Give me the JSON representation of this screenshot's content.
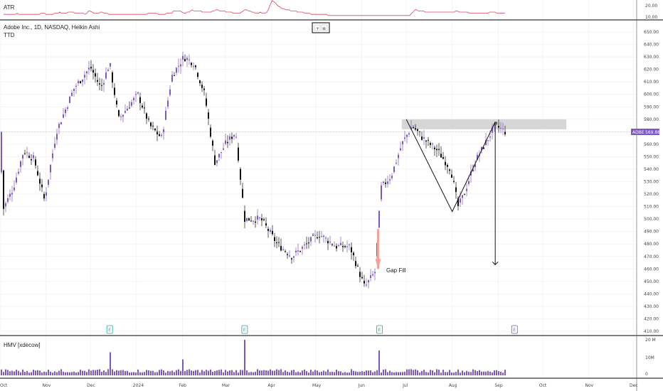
{
  "header": {
    "title": "Adobe Inc., 1D, NASDAQ, Heikin Ashi",
    "indicator": "TTD",
    "mini_buttons": [
      "+",
      "⊕"
    ]
  },
  "atr_panel": {
    "label": "ATR",
    "ticks": [
      "20.00",
      "10.00"
    ],
    "values": [
      13,
      13,
      13,
      13,
      13,
      13,
      13,
      13,
      14,
      13,
      13,
      13,
      13,
      13,
      13,
      13,
      13,
      13,
      13,
      13,
      13,
      13,
      14,
      14,
      14,
      13,
      13,
      13,
      13,
      13,
      14,
      14,
      14,
      15,
      14,
      14,
      14,
      14,
      15,
      15,
      15,
      15,
      14,
      14,
      14,
      14,
      14,
      14,
      13,
      14,
      16,
      16,
      15,
      14,
      14,
      14,
      14,
      15,
      15,
      14,
      14,
      14,
      13,
      13,
      13,
      13,
      13,
      13,
      13,
      13,
      13,
      13,
      13,
      13,
      13,
      13,
      13,
      13,
      13,
      13,
      13,
      13,
      13,
      13,
      13,
      14,
      14,
      14,
      14,
      14,
      14,
      13,
      13,
      13,
      13,
      13,
      14,
      14,
      14,
      14,
      16,
      16,
      16,
      16,
      16,
      15,
      14,
      14,
      15,
      15,
      16,
      17,
      16,
      16,
      16,
      16,
      16,
      15,
      15,
      15,
      15,
      15,
      15,
      16,
      16,
      17,
      17,
      16,
      16,
      16,
      16,
      15,
      15,
      15,
      15,
      14,
      14,
      14,
      14,
      14,
      15,
      16,
      17,
      17,
      16,
      16,
      15,
      15,
      14,
      14,
      14,
      15,
      14,
      14,
      14,
      15,
      18,
      22,
      25,
      24,
      23,
      21,
      20,
      19,
      18,
      18,
      17,
      17,
      17,
      16,
      16,
      16,
      16,
      15,
      15,
      15,
      15,
      14,
      14,
      14,
      14,
      13,
      13,
      13,
      13,
      13,
      13,
      13,
      13,
      13,
      13,
      12,
      12,
      12,
      12,
      12,
      12,
      12,
      12,
      12,
      12,
      12,
      12,
      12,
      12,
      12,
      12,
      12,
      12,
      12,
      12,
      12,
      12,
      12,
      12,
      12,
      12,
      12,
      12,
      12,
      12,
      12,
      12,
      12,
      12,
      12,
      12,
      12,
      12,
      12,
      12,
      12,
      12,
      12,
      12,
      12,
      12,
      12,
      12,
      12,
      14,
      15,
      17,
      17,
      16,
      16,
      16,
      16,
      15,
      15,
      15,
      15,
      15,
      15,
      15,
      15,
      15,
      15,
      15,
      15,
      15,
      15,
      15,
      15,
      15,
      15,
      16,
      16,
      15,
      15,
      15,
      15,
      15,
      15,
      14,
      14,
      14,
      14,
      14,
      14,
      14,
      14,
      14,
      14,
      14,
      14,
      15,
      15,
      15,
      15,
      14,
      14,
      14,
      14,
      14,
      14
    ]
  },
  "price_axis": {
    "ticks": [
      "650.00",
      "640.00",
      "630.00",
      "620.00",
      "610.00",
      "600.00",
      "590.00",
      "580.00",
      "570.00",
      "560.00",
      "550.00",
      "540.00",
      "530.00",
      "520.00",
      "510.00",
      "500.00",
      "490.00",
      "480.00",
      "470.00",
      "460.00",
      "450.00",
      "440.00",
      "430.00",
      "420.00",
      "410.00"
    ],
    "current_symbol": "ADBE",
    "current_price": "569.88"
  },
  "time_axis": {
    "labels": [
      "Oct",
      "Nov",
      "Dec",
      "2024",
      "Feb",
      "Mar",
      "Apr",
      "May",
      "Jun",
      "Jul",
      "Aug",
      "Sep",
      "Oct",
      "Nov",
      "Dec"
    ]
  },
  "annotations": {
    "gap_fill": "Gap Fill",
    "earnings_marker": "E"
  },
  "volume_panel": {
    "label": "HMV [xdecow]",
    "ticks": [
      "20 M",
      "10M",
      "0"
    ]
  },
  "colors": {
    "bull": "#7e57c2",
    "bear": "#111111",
    "atr_line": "#e0455f",
    "volume_bar": "#7e57c2",
    "earnings": "#26a69a",
    "resistance_zone": "#cfcfcf",
    "gap_arrow": "#f4a39a"
  },
  "chart_data": {
    "type": "candlestick",
    "title": "Adobe Inc., 1D, NASDAQ, Heikin Ashi",
    "ylim": [
      405,
      655
    ],
    "x_range": [
      "Oct 2023",
      "Dec 2024"
    ],
    "price_path": [
      {
        "x": "2023-10-02",
        "y": 505
      },
      {
        "x": "2023-10-10",
        "y": 525
      },
      {
        "x": "2023-10-17",
        "y": 555
      },
      {
        "x": "2023-10-24",
        "y": 548
      },
      {
        "x": "2023-10-31",
        "y": 515
      },
      {
        "x": "2023-11-08",
        "y": 570
      },
      {
        "x": "2023-11-20",
        "y": 605
      },
      {
        "x": "2023-12-01",
        "y": 622
      },
      {
        "x": "2023-12-08",
        "y": 605
      },
      {
        "x": "2023-12-14",
        "y": 625
      },
      {
        "x": "2023-12-20",
        "y": 580
      },
      {
        "x": "2024-01-02",
        "y": 600
      },
      {
        "x": "2024-01-10",
        "y": 575
      },
      {
        "x": "2024-01-18",
        "y": 565
      },
      {
        "x": "2024-01-25",
        "y": 615
      },
      {
        "x": "2024-02-02",
        "y": 630
      },
      {
        "x": "2024-02-09",
        "y": 625
      },
      {
        "x": "2024-02-16",
        "y": 600
      },
      {
        "x": "2024-02-23",
        "y": 545
      },
      {
        "x": "2024-03-01",
        "y": 560
      },
      {
        "x": "2024-03-08",
        "y": 570
      },
      {
        "x": "2024-03-14",
        "y": 500
      },
      {
        "x": "2024-03-25",
        "y": 500
      },
      {
        "x": "2024-04-05",
        "y": 480
      },
      {
        "x": "2024-04-15",
        "y": 470
      },
      {
        "x": "2024-04-25",
        "y": 480
      },
      {
        "x": "2024-05-03",
        "y": 488
      },
      {
        "x": "2024-05-15",
        "y": 478
      },
      {
        "x": "2024-05-24",
        "y": 478
      },
      {
        "x": "2024-06-03",
        "y": 445
      },
      {
        "x": "2024-06-10",
        "y": 458
      },
      {
        "x": "2024-06-14",
        "y": 525
      },
      {
        "x": "2024-06-21",
        "y": 535
      },
      {
        "x": "2024-06-28",
        "y": 560
      },
      {
        "x": "2024-07-05",
        "y": 575
      },
      {
        "x": "2024-07-12",
        "y": 565
      },
      {
        "x": "2024-07-22",
        "y": 555
      },
      {
        "x": "2024-07-31",
        "y": 540
      },
      {
        "x": "2024-08-05",
        "y": 510
      },
      {
        "x": "2024-08-09",
        "y": 520
      },
      {
        "x": "2024-08-16",
        "y": 545
      },
      {
        "x": "2024-08-23",
        "y": 560
      },
      {
        "x": "2024-08-30",
        "y": 575
      },
      {
        "x": "2024-09-06",
        "y": 569.88
      }
    ],
    "resistance_zone": [
      572,
      580
    ],
    "pattern_line": [
      {
        "x": "2024-07-01",
        "y": 580
      },
      {
        "x": "2024-08-01",
        "y": 506
      },
      {
        "x": "2024-08-30",
        "y": 578
      }
    ],
    "projection_target": 460,
    "gap_fill_level": 460
  }
}
